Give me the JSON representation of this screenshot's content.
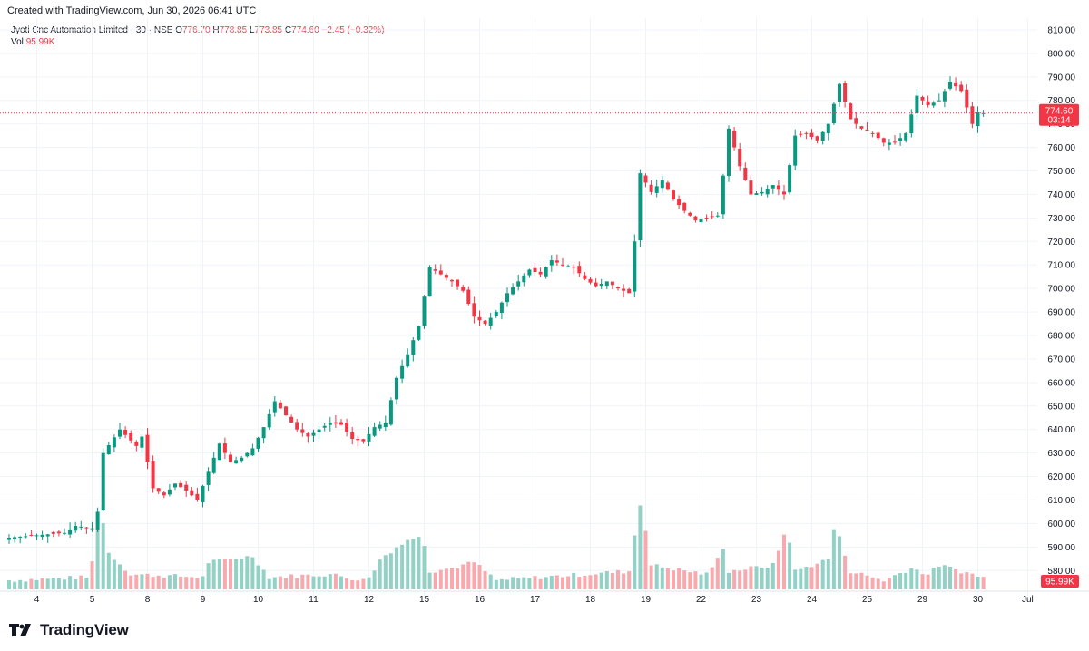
{
  "header": {
    "created_text": "Created with TradingView.com, Jun 30, 2026 06:41 UTC"
  },
  "legend": {
    "symbol": "Jyoti Cnc Automation Limited · 30 · NSE",
    "o_label": "O",
    "o_value": "776.70",
    "h_label": "H",
    "h_value": "778.85",
    "l_label": "L",
    "l_value": "773.85",
    "c_label": "C",
    "c_value": "774.60",
    "change": "−2.45 (−0.32%)",
    "vol_label": "Vol",
    "vol_value": "95.99K"
  },
  "price_badge": {
    "price": "774.60",
    "countdown": "03:14"
  },
  "volume_badge": "95.99K",
  "footer": {
    "brand": "TradingView"
  },
  "colors": {
    "up": "#089981",
    "down": "#f23645",
    "vol_up": "#92d1c6",
    "vol_down": "#f7a9ae",
    "grid": "#f0f3fa",
    "axis_text": "#131722"
  },
  "chart_data": {
    "type": "candlestick",
    "ylim": [
      572,
      815
    ],
    "grid": true,
    "y_ticks": [
      "580.00",
      "590.00",
      "600.00",
      "610.00",
      "620.00",
      "630.00",
      "640.00",
      "650.00",
      "660.00",
      "670.00",
      "680.00",
      "690.00",
      "700.00",
      "710.00",
      "720.00",
      "730.00",
      "740.00",
      "750.00",
      "760.00",
      "770.00",
      "780.00",
      "790.00",
      "800.00",
      "810.00"
    ],
    "x_labels": [
      "4",
      "5",
      "8",
      "9",
      "10",
      "11",
      "12",
      "15",
      "16",
      "17",
      "18",
      "19",
      "22",
      "23",
      "24",
      "25",
      "29",
      "30",
      "Jul"
    ],
    "last_close": 774.6,
    "anchors": [
      [
        0,
        594
      ],
      [
        10,
        596
      ],
      [
        12,
        599
      ],
      [
        15,
        598
      ],
      [
        16,
        605
      ],
      [
        17,
        630
      ],
      [
        20,
        640
      ],
      [
        23,
        633
      ],
      [
        24,
        637
      ],
      [
        26,
        615
      ],
      [
        28,
        612
      ],
      [
        30,
        617
      ],
      [
        32,
        614
      ],
      [
        34,
        610
      ],
      [
        36,
        622
      ],
      [
        38,
        634
      ],
      [
        40,
        626
      ],
      [
        42,
        628
      ],
      [
        44,
        632
      ],
      [
        46,
        641
      ],
      [
        48,
        652
      ],
      [
        50,
        646
      ],
      [
        52,
        640
      ],
      [
        54,
        637
      ],
      [
        56,
        640
      ],
      [
        58,
        643
      ],
      [
        60,
        642
      ],
      [
        62,
        636
      ],
      [
        64,
        635
      ],
      [
        66,
        641
      ],
      [
        68,
        643
      ],
      [
        70,
        662
      ],
      [
        72,
        672
      ],
      [
        74,
        684
      ],
      [
        76,
        709
      ],
      [
        78,
        706
      ],
      [
        80,
        703
      ],
      [
        82,
        699
      ],
      [
        84,
        688
      ],
      [
        86,
        685
      ],
      [
        88,
        690
      ],
      [
        90,
        698
      ],
      [
        92,
        703
      ],
      [
        94,
        708
      ],
      [
        96,
        706
      ],
      [
        98,
        712
      ],
      [
        100,
        710
      ],
      [
        102,
        709
      ],
      [
        104,
        704
      ],
      [
        106,
        701
      ],
      [
        108,
        703
      ],
      [
        110,
        700
      ],
      [
        112,
        698
      ],
      [
        113,
        720
      ],
      [
        114,
        749
      ],
      [
        116,
        741
      ],
      [
        118,
        746
      ],
      [
        120,
        738
      ],
      [
        122,
        733
      ],
      [
        124,
        729
      ],
      [
        126,
        730
      ],
      [
        128,
        731
      ],
      [
        129,
        748
      ],
      [
        130,
        768
      ],
      [
        132,
        752
      ],
      [
        134,
        740
      ],
      [
        136,
        741
      ],
      [
        138,
        744
      ],
      [
        140,
        740
      ],
      [
        142,
        765
      ],
      [
        144,
        766
      ],
      [
        146,
        763
      ],
      [
        148,
        770
      ],
      [
        150,
        787
      ],
      [
        152,
        772
      ],
      [
        154,
        768
      ],
      [
        156,
        766
      ],
      [
        158,
        762
      ],
      [
        160,
        762
      ],
      [
        162,
        766
      ],
      [
        164,
        782
      ],
      [
        166,
        778
      ],
      [
        168,
        780
      ],
      [
        170,
        788
      ],
      [
        172,
        784
      ],
      [
        174,
        770
      ],
      [
        175,
        775.1
      ],
      [
        176,
        774.6
      ]
    ],
    "volume_anchors": [
      [
        0,
        3
      ],
      [
        14,
        4
      ],
      [
        15,
        9
      ],
      [
        16,
        20
      ],
      [
        17,
        22
      ],
      [
        18,
        12
      ],
      [
        22,
        5
      ],
      [
        35,
        4
      ],
      [
        36,
        9
      ],
      [
        44,
        11
      ],
      [
        47,
        4
      ],
      [
        58,
        5
      ],
      [
        64,
        3
      ],
      [
        66,
        6
      ],
      [
        67,
        10
      ],
      [
        70,
        14
      ],
      [
        73,
        17
      ],
      [
        74,
        18
      ],
      [
        75,
        15
      ],
      [
        76,
        6
      ],
      [
        80,
        7
      ],
      [
        84,
        9
      ],
      [
        88,
        3
      ],
      [
        112,
        6
      ],
      [
        113,
        18
      ],
      [
        114,
        28
      ],
      [
        115,
        20
      ],
      [
        116,
        8
      ],
      [
        126,
        5
      ],
      [
        128,
        10
      ],
      [
        129,
        14
      ],
      [
        130,
        6
      ],
      [
        138,
        8
      ],
      [
        140,
        18
      ],
      [
        141,
        16
      ],
      [
        142,
        6
      ],
      [
        148,
        10
      ],
      [
        149,
        20
      ],
      [
        150,
        17
      ],
      [
        152,
        6
      ],
      [
        158,
        3
      ],
      [
        163,
        7
      ],
      [
        166,
        5
      ],
      [
        168,
        8
      ],
      [
        172,
        6
      ],
      [
        176,
        4
      ]
    ]
  }
}
